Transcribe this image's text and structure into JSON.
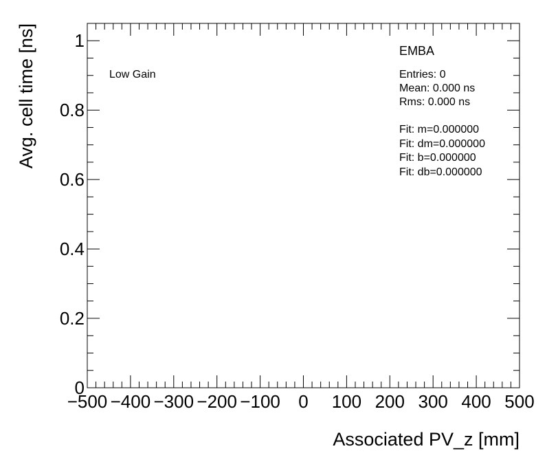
{
  "chart_data": {
    "type": "scatter",
    "title": "",
    "xlabel": "Associated PV_z [mm]",
    "ylabel": "Avg. cell time [ns]",
    "xlim": [
      -500,
      500
    ],
    "ylim": [
      0,
      1.05
    ],
    "x_ticks": [
      -500,
      -400,
      -300,
      -200,
      -100,
      0,
      100,
      200,
      300,
      400,
      500
    ],
    "x_tick_labels": [
      "−500",
      "−400",
      "−300",
      "−200",
      "−100",
      "0",
      "100",
      "200",
      "300",
      "400",
      "500"
    ],
    "y_ticks": [
      0,
      0.2,
      0.4,
      0.6,
      0.8,
      1
    ],
    "y_tick_labels": [
      "0",
      "0.2",
      "0.4",
      "0.6",
      "0.8",
      "1"
    ],
    "series": [],
    "grid": false,
    "annotations": {
      "gain_label": "Low Gain",
      "partition": "EMBA",
      "stats": [
        "Entries: 0",
        "Mean: 0.000 ns",
        "Rms: 0.000 ns"
      ],
      "fit": [
        "Fit: m=0.000000",
        "Fit: dm=0.000000",
        "Fit: b=0.000000",
        "Fit: db=0.000000"
      ]
    }
  }
}
